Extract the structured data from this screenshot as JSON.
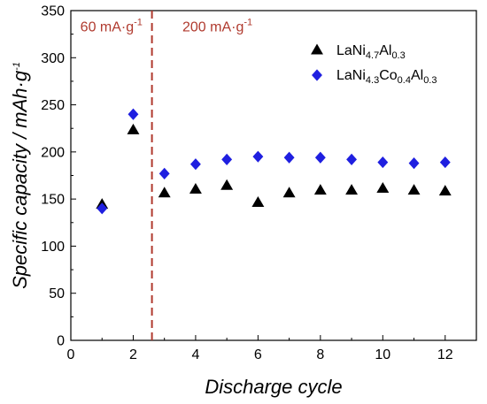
{
  "chart_data": {
    "type": "scatter",
    "xlabel": "Discharge cycle",
    "ylabel_parts": {
      "base": "Specific capacity / mAh·g",
      "sup": "-1"
    },
    "xlim": [
      0,
      13
    ],
    "ylim": [
      0,
      350
    ],
    "x_ticks": [
      "0",
      "2",
      "4",
      "6",
      "8",
      "10",
      "12"
    ],
    "y_ticks": [
      "0",
      "50",
      "100",
      "150",
      "200",
      "250",
      "300",
      "350"
    ],
    "x_tick_values": [
      0,
      2,
      4,
      6,
      8,
      10,
      12
    ],
    "y_tick_values": [
      0,
      50,
      100,
      150,
      200,
      250,
      300,
      350
    ],
    "grid": false,
    "legend_position": "top-right",
    "divider_x": 2.6,
    "divider_color": "#b03a2e",
    "annotations": [
      {
        "id": "rate1",
        "base": "60 mA·g",
        "sup": "-1",
        "x": 1.3,
        "y": 328,
        "color": "#b03a2e"
      },
      {
        "id": "rate2",
        "base": "200 mA·g",
        "sup": "-1",
        "x": 4.7,
        "y": 328,
        "color": "#b03a2e"
      }
    ],
    "series": [
      {
        "name_parts": [
          {
            "t": "LaNi",
            "s": ""
          },
          {
            "t": "4.7",
            "s": "sub"
          },
          {
            "t": "Al",
            "s": ""
          },
          {
            "t": "0.3",
            "s": "sub"
          }
        ],
        "marker": "triangle",
        "color": "#000000",
        "x": [
          1,
          2,
          3,
          4,
          5,
          6,
          7,
          8,
          9,
          10,
          11,
          12
        ],
        "y": [
          144,
          223,
          156,
          160,
          164,
          146,
          156,
          159,
          159,
          161,
          159,
          158
        ]
      },
      {
        "name_parts": [
          {
            "t": "LaNi",
            "s": ""
          },
          {
            "t": "4.3",
            "s": "sub"
          },
          {
            "t": "Co",
            "s": ""
          },
          {
            "t": "0.4",
            "s": "sub"
          },
          {
            "t": "Al",
            "s": ""
          },
          {
            "t": "0.3",
            "s": "sub"
          }
        ],
        "marker": "diamond",
        "color": "#1f1fe0",
        "x": [
          1,
          2,
          3,
          4,
          5,
          6,
          7,
          8,
          9,
          10,
          11,
          12
        ],
        "y": [
          140,
          240,
          177,
          187,
          192,
          195,
          194,
          194,
          192,
          189,
          188,
          189
        ]
      }
    ]
  }
}
